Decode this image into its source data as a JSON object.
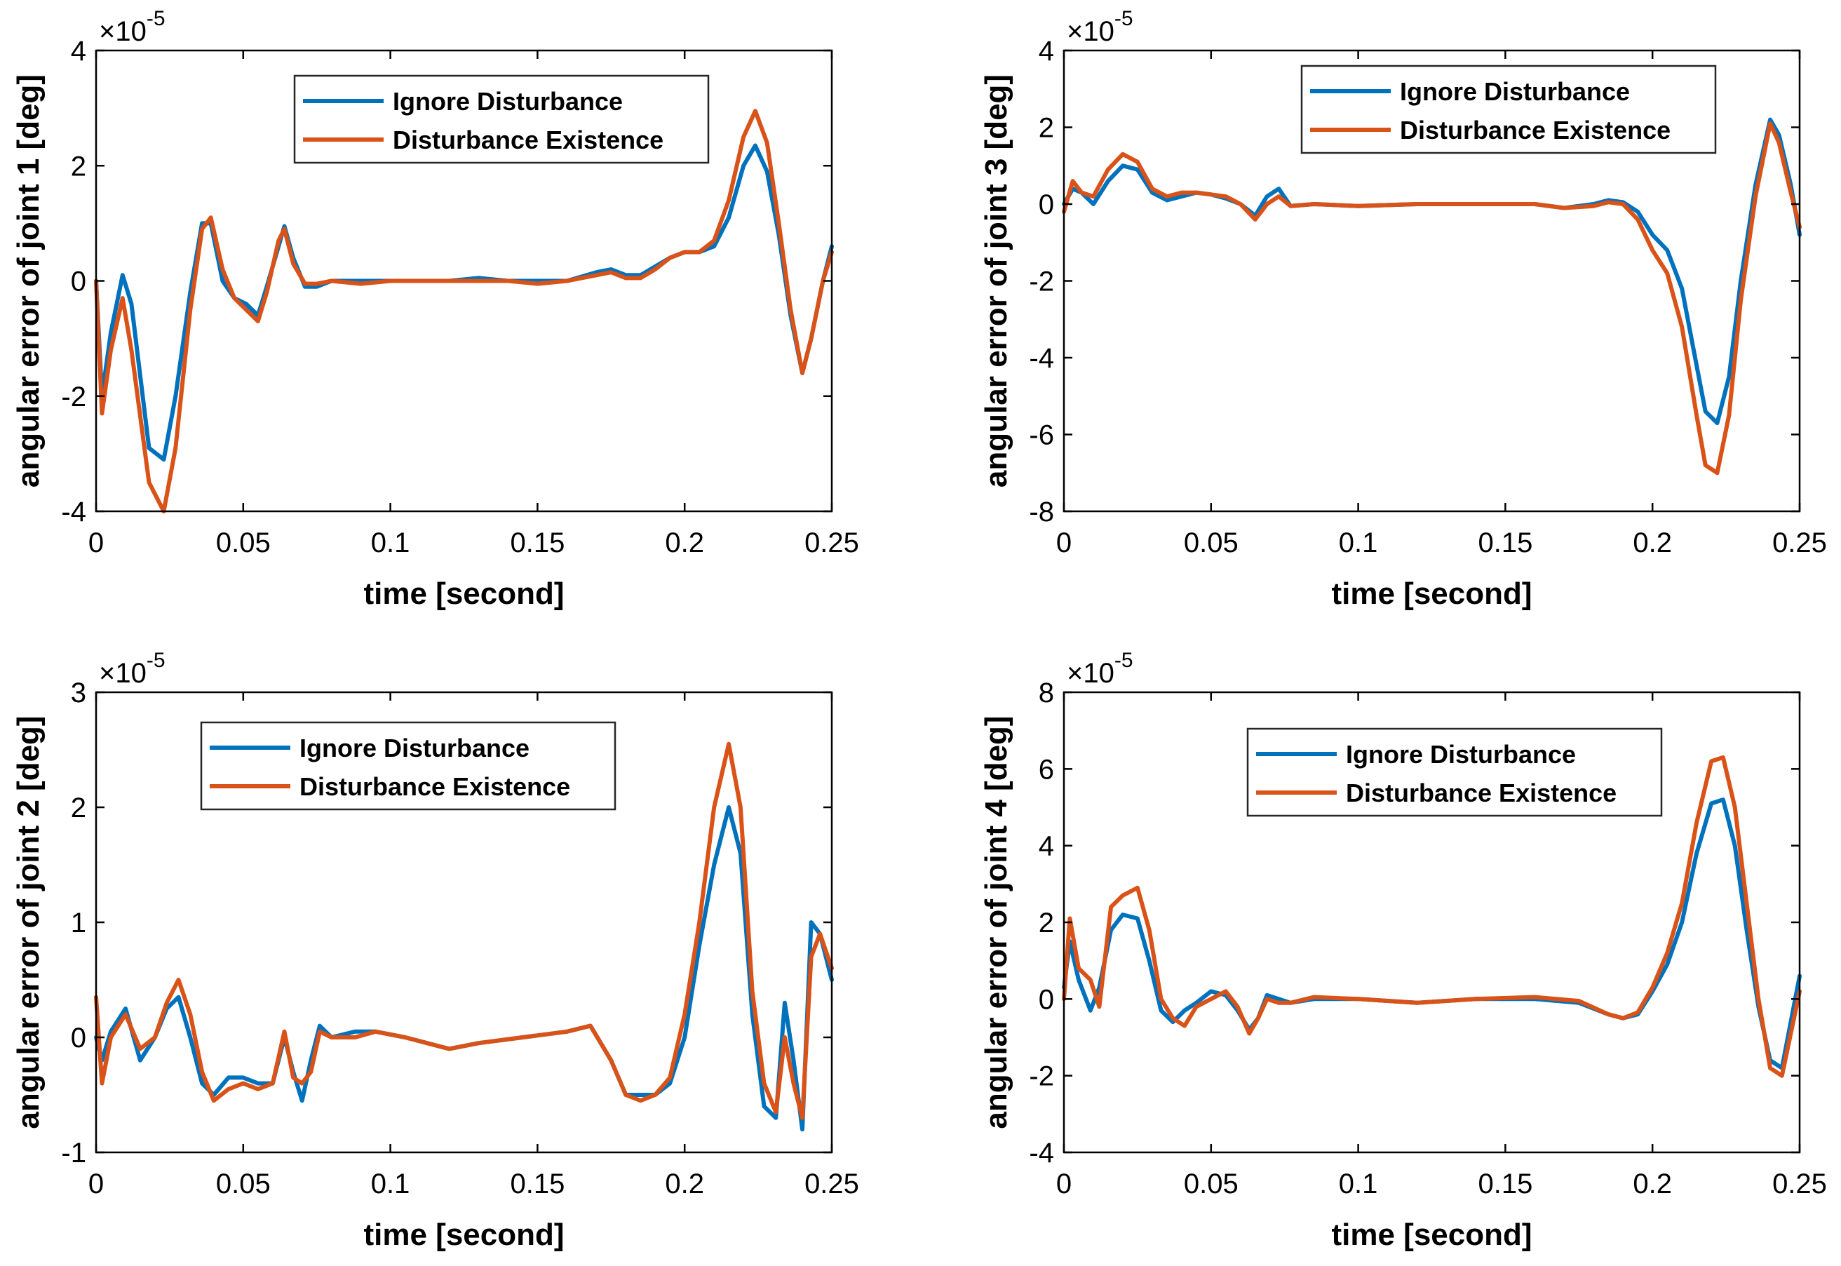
{
  "colors": {
    "ignore": "#0072BD",
    "existence": "#D95319",
    "axis": "#000000",
    "background": "#ffffff"
  },
  "chart_data": [
    {
      "type": "line",
      "panel": "top-left",
      "xlabel": "time [second]",
      "ylabel": "angular error of joint 1 [deg]",
      "multiplier_base": "×10",
      "multiplier_exp": "-5",
      "xlim": [
        0,
        0.25
      ],
      "ylim": [
        -4,
        4
      ],
      "xticks": [
        0,
        0.05,
        0.1,
        0.15,
        0.2,
        0.25
      ],
      "xtick_labels": [
        "0",
        "0.05",
        "0.1",
        "0.15",
        "0.2",
        "0.25"
      ],
      "yticks": [
        -4,
        -2,
        0,
        2,
        4
      ],
      "ytick_labels": [
        "-4",
        "-2",
        "0",
        "2",
        "4"
      ],
      "legend_position": "top-right",
      "series": [
        {
          "name": "Ignore Disturbance",
          "color": "#0072BD",
          "x": [
            0,
            0.002,
            0.005,
            0.009,
            0.012,
            0.018,
            0.023,
            0.027,
            0.032,
            0.036,
            0.039,
            0.043,
            0.047,
            0.051,
            0.055,
            0.058,
            0.062,
            0.064,
            0.067,
            0.071,
            0.075,
            0.08,
            0.09,
            0.1,
            0.11,
            0.12,
            0.13,
            0.14,
            0.15,
            0.16,
            0.17,
            0.175,
            0.18,
            0.185,
            0.19,
            0.195,
            0.2,
            0.205,
            0.21,
            0.215,
            0.22,
            0.224,
            0.228,
            0.232,
            0.236,
            0.24,
            0.243,
            0.247,
            0.25
          ],
          "y": [
            0,
            -2.0,
            -0.9,
            0.1,
            -0.4,
            -2.9,
            -3.1,
            -2.0,
            -0.2,
            1.0,
            1.0,
            0.0,
            -0.3,
            -0.4,
            -0.6,
            -0.1,
            0.6,
            0.95,
            0.4,
            -0.1,
            -0.1,
            0.0,
            0.0,
            0.0,
            0.0,
            0.0,
            0.05,
            0.0,
            0.0,
            0.0,
            0.15,
            0.2,
            0.1,
            0.1,
            0.25,
            0.4,
            0.5,
            0.5,
            0.6,
            1.1,
            2.0,
            2.35,
            1.9,
            0.8,
            -0.6,
            -1.6,
            -1.0,
            0.0,
            0.6
          ]
        },
        {
          "name": "Disturbance Existence",
          "color": "#D95319",
          "x": [
            0,
            0.002,
            0.005,
            0.009,
            0.012,
            0.018,
            0.023,
            0.027,
            0.032,
            0.036,
            0.039,
            0.043,
            0.047,
            0.051,
            0.055,
            0.058,
            0.062,
            0.064,
            0.067,
            0.071,
            0.075,
            0.08,
            0.09,
            0.1,
            0.11,
            0.12,
            0.13,
            0.14,
            0.15,
            0.16,
            0.17,
            0.175,
            0.18,
            0.185,
            0.19,
            0.195,
            0.2,
            0.205,
            0.21,
            0.215,
            0.22,
            0.224,
            0.228,
            0.232,
            0.236,
            0.24,
            0.243,
            0.247,
            0.25
          ],
          "y": [
            0,
            -2.3,
            -1.2,
            -0.3,
            -1.2,
            -3.5,
            -4.0,
            -2.9,
            -0.5,
            0.9,
            1.1,
            0.2,
            -0.3,
            -0.5,
            -0.7,
            -0.2,
            0.7,
            0.9,
            0.3,
            -0.05,
            -0.05,
            0.0,
            -0.05,
            0.0,
            0.0,
            0.0,
            0.0,
            0.0,
            -0.05,
            0.0,
            0.1,
            0.15,
            0.05,
            0.05,
            0.2,
            0.4,
            0.5,
            0.5,
            0.7,
            1.4,
            2.5,
            2.95,
            2.4,
            1.0,
            -0.5,
            -1.6,
            -1.0,
            0.0,
            0.5
          ]
        }
      ]
    },
    {
      "type": "line",
      "panel": "top-right",
      "xlabel": "time [second]",
      "ylabel": "angular error of joint 3 [deg]",
      "multiplier_base": "×10",
      "multiplier_exp": "-5",
      "xlim": [
        0,
        0.25
      ],
      "ylim": [
        -8,
        4
      ],
      "xticks": [
        0,
        0.05,
        0.1,
        0.15,
        0.2,
        0.25
      ],
      "xtick_labels": [
        "0",
        "0.05",
        "0.1",
        "0.15",
        "0.2",
        "0.25"
      ],
      "yticks": [
        -8,
        -6,
        -4,
        -2,
        0,
        2,
        4
      ],
      "ytick_labels": [
        "-8",
        "-6",
        "-4",
        "-2",
        "0",
        "2",
        "4"
      ],
      "legend_position": "top-right",
      "series": [
        {
          "name": "Ignore Disturbance",
          "color": "#0072BD",
          "x": [
            0,
            0.003,
            0.006,
            0.01,
            0.015,
            0.02,
            0.025,
            0.03,
            0.035,
            0.04,
            0.045,
            0.05,
            0.055,
            0.06,
            0.065,
            0.069,
            0.073,
            0.077,
            0.085,
            0.1,
            0.12,
            0.14,
            0.16,
            0.17,
            0.18,
            0.185,
            0.19,
            0.195,
            0.2,
            0.205,
            0.21,
            0.215,
            0.218,
            0.222,
            0.226,
            0.23,
            0.235,
            0.24,
            0.243,
            0.247,
            0.25
          ],
          "y": [
            0,
            0.4,
            0.3,
            0.0,
            0.6,
            1.0,
            0.9,
            0.3,
            0.1,
            0.2,
            0.3,
            0.25,
            0.15,
            0.0,
            -0.3,
            0.2,
            0.4,
            -0.05,
            0.0,
            -0.05,
            0.0,
            0.0,
            0.0,
            -0.1,
            0.0,
            0.1,
            0.05,
            -0.2,
            -0.8,
            -1.2,
            -2.2,
            -4.2,
            -5.4,
            -5.7,
            -4.5,
            -2.0,
            0.5,
            2.2,
            1.8,
            0.5,
            -0.8
          ]
        },
        {
          "name": "Disturbance Existence",
          "color": "#D95319",
          "x": [
            0,
            0.003,
            0.006,
            0.01,
            0.015,
            0.02,
            0.025,
            0.03,
            0.035,
            0.04,
            0.045,
            0.05,
            0.055,
            0.06,
            0.065,
            0.069,
            0.073,
            0.077,
            0.085,
            0.1,
            0.12,
            0.14,
            0.16,
            0.17,
            0.18,
            0.185,
            0.19,
            0.195,
            0.2,
            0.205,
            0.21,
            0.215,
            0.218,
            0.222,
            0.226,
            0.23,
            0.235,
            0.24,
            0.243,
            0.247,
            0.25
          ],
          "y": [
            -0.2,
            0.6,
            0.3,
            0.2,
            0.9,
            1.3,
            1.1,
            0.4,
            0.2,
            0.3,
            0.3,
            0.25,
            0.2,
            0.0,
            -0.4,
            0.0,
            0.2,
            -0.05,
            0.0,
            -0.05,
            0.0,
            0.0,
            0.0,
            -0.1,
            -0.05,
            0.05,
            0.0,
            -0.4,
            -1.2,
            -1.8,
            -3.2,
            -5.5,
            -6.8,
            -7.0,
            -5.5,
            -2.5,
            0.2,
            2.1,
            1.6,
            0.3,
            -0.6
          ]
        }
      ]
    },
    {
      "type": "line",
      "panel": "bottom-left",
      "xlabel": "time [second]",
      "ylabel": "angular error of joint 2 [deg]",
      "multiplier_base": "×10",
      "multiplier_exp": "-5",
      "xlim": [
        0,
        0.25
      ],
      "ylim": [
        -1,
        3
      ],
      "xticks": [
        0,
        0.05,
        0.1,
        0.15,
        0.2,
        0.25
      ],
      "xtick_labels": [
        "0",
        "0.05",
        "0.1",
        "0.15",
        "0.2",
        "0.25"
      ],
      "yticks": [
        -1,
        0,
        1,
        2,
        3
      ],
      "ytick_labels": [
        "-1",
        "0",
        "1",
        "2",
        "3"
      ],
      "legend_position": "top-left",
      "series": [
        {
          "name": "Ignore Disturbance",
          "color": "#0072BD",
          "x": [
            0,
            0.002,
            0.005,
            0.01,
            0.015,
            0.02,
            0.024,
            0.028,
            0.032,
            0.036,
            0.04,
            0.045,
            0.05,
            0.055,
            0.06,
            0.064,
            0.067,
            0.07,
            0.073,
            0.076,
            0.08,
            0.088,
            0.095,
            0.105,
            0.12,
            0.13,
            0.145,
            0.16,
            0.168,
            0.175,
            0.18,
            0.185,
            0.19,
            0.195,
            0.2,
            0.205,
            0.21,
            0.215,
            0.219,
            0.223,
            0.227,
            0.231,
            0.234,
            0.237,
            0.24,
            0.243,
            0.246,
            0.25
          ],
          "y": [
            0,
            -0.2,
            0.05,
            0.25,
            -0.2,
            0.0,
            0.25,
            0.35,
            0.0,
            -0.4,
            -0.5,
            -0.35,
            -0.35,
            -0.4,
            -0.4,
            0.0,
            -0.3,
            -0.55,
            -0.2,
            0.1,
            0.0,
            0.05,
            0.05,
            0.0,
            -0.1,
            -0.05,
            0.0,
            0.05,
            0.1,
            -0.2,
            -0.5,
            -0.5,
            -0.5,
            -0.4,
            0.0,
            0.8,
            1.5,
            2.0,
            1.6,
            0.2,
            -0.6,
            -0.7,
            0.3,
            -0.2,
            -0.8,
            1.0,
            0.9,
            0.5
          ]
        },
        {
          "name": "Disturbance Existence",
          "color": "#D95319",
          "x": [
            0,
            0.002,
            0.005,
            0.01,
            0.015,
            0.02,
            0.024,
            0.028,
            0.032,
            0.036,
            0.04,
            0.045,
            0.05,
            0.055,
            0.06,
            0.064,
            0.067,
            0.07,
            0.073,
            0.076,
            0.08,
            0.088,
            0.095,
            0.105,
            0.12,
            0.13,
            0.145,
            0.16,
            0.168,
            0.175,
            0.18,
            0.185,
            0.19,
            0.195,
            0.2,
            0.205,
            0.21,
            0.215,
            0.219,
            0.223,
            0.227,
            0.231,
            0.234,
            0.237,
            0.24,
            0.243,
            0.246,
            0.25
          ],
          "y": [
            0.35,
            -0.4,
            0.0,
            0.2,
            -0.1,
            0.0,
            0.3,
            0.5,
            0.2,
            -0.3,
            -0.55,
            -0.45,
            -0.4,
            -0.45,
            -0.4,
            0.05,
            -0.35,
            -0.4,
            -0.3,
            0.05,
            0.0,
            0.0,
            0.05,
            0.0,
            -0.1,
            -0.05,
            0.0,
            0.05,
            0.1,
            -0.2,
            -0.5,
            -0.55,
            -0.5,
            -0.35,
            0.2,
            1.0,
            2.0,
            2.55,
            2.0,
            0.4,
            -0.4,
            -0.65,
            0.0,
            -0.4,
            -0.7,
            0.7,
            0.9,
            0.6
          ]
        }
      ]
    },
    {
      "type": "line",
      "panel": "bottom-right",
      "xlabel": "time [second]",
      "ylabel": "angular error of joint 4 [deg]",
      "multiplier_base": "×10",
      "multiplier_exp": "-5",
      "xlim": [
        0,
        0.25
      ],
      "ylim": [
        -4,
        8
      ],
      "xticks": [
        0,
        0.05,
        0.1,
        0.15,
        0.2,
        0.25
      ],
      "xtick_labels": [
        "0",
        "0.05",
        "0.1",
        "0.15",
        "0.2",
        "0.25"
      ],
      "yticks": [
        -4,
        -2,
        0,
        2,
        4,
        6,
        8
      ],
      "ytick_labels": [
        "-4",
        "-2",
        "0",
        "2",
        "4",
        "6",
        "8"
      ],
      "legend_position": "top-right",
      "series": [
        {
          "name": "Ignore Disturbance",
          "color": "#0072BD",
          "x": [
            0,
            0.002,
            0.005,
            0.009,
            0.012,
            0.016,
            0.02,
            0.025,
            0.029,
            0.033,
            0.037,
            0.041,
            0.045,
            0.05,
            0.055,
            0.059,
            0.063,
            0.066,
            0.069,
            0.073,
            0.077,
            0.085,
            0.1,
            0.12,
            0.14,
            0.16,
            0.175,
            0.185,
            0.19,
            0.195,
            0.2,
            0.205,
            0.21,
            0.215,
            0.22,
            0.224,
            0.228,
            0.232,
            0.236,
            0.24,
            0.244,
            0.25
          ],
          "y": [
            0.3,
            1.5,
            0.5,
            -0.3,
            0.3,
            1.8,
            2.2,
            2.1,
            1.0,
            -0.3,
            -0.6,
            -0.3,
            -0.1,
            0.2,
            0.1,
            -0.3,
            -0.8,
            -0.5,
            0.1,
            0.0,
            -0.1,
            0.0,
            0.0,
            -0.1,
            0.0,
            0.0,
            -0.1,
            -0.4,
            -0.5,
            -0.4,
            0.2,
            0.9,
            2.0,
            3.8,
            5.1,
            5.2,
            4.0,
            1.8,
            -0.2,
            -1.6,
            -1.8,
            0.6
          ]
        },
        {
          "name": "Disturbance Existence",
          "color": "#D95319",
          "x": [
            0,
            0.002,
            0.005,
            0.009,
            0.012,
            0.016,
            0.02,
            0.025,
            0.029,
            0.033,
            0.037,
            0.041,
            0.045,
            0.05,
            0.055,
            0.059,
            0.063,
            0.066,
            0.069,
            0.073,
            0.077,
            0.085,
            0.1,
            0.12,
            0.14,
            0.16,
            0.175,
            0.185,
            0.19,
            0.195,
            0.2,
            0.205,
            0.21,
            0.215,
            0.22,
            0.224,
            0.228,
            0.232,
            0.236,
            0.24,
            0.244,
            0.25
          ],
          "y": [
            0.0,
            2.1,
            0.8,
            0.5,
            -0.2,
            2.4,
            2.7,
            2.9,
            1.8,
            0.0,
            -0.5,
            -0.7,
            -0.2,
            0.0,
            0.2,
            -0.2,
            -0.9,
            -0.5,
            0.0,
            -0.1,
            -0.1,
            0.05,
            0.0,
            -0.1,
            0.0,
            0.05,
            -0.05,
            -0.4,
            -0.5,
            -0.35,
            0.3,
            1.2,
            2.5,
            4.6,
            6.2,
            6.3,
            5.0,
            2.5,
            0.0,
            -1.8,
            -2.0,
            0.2
          ]
        }
      ]
    }
  ]
}
